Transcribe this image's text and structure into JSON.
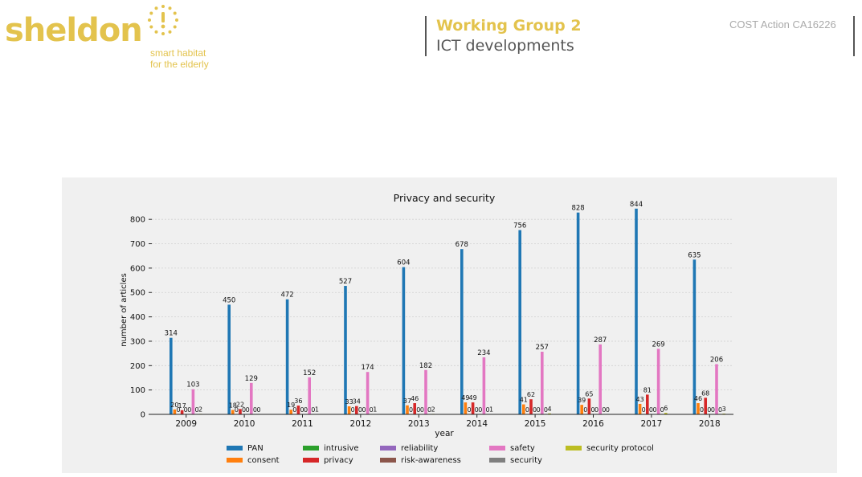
{
  "header": {
    "logo": "sheldon",
    "tagline_1": "smart habitat",
    "tagline_2": "for the elderly",
    "wg_title": "Working Group 2",
    "wg_subtitle": "ICT developments",
    "cost": "COST Action CA16226",
    "brand_color": "#e3c34d"
  },
  "chart_data": {
    "type": "bar",
    "title": "Privacy and security",
    "xlabel": "year",
    "ylabel": "number of articles",
    "ylim": [
      0,
      850
    ],
    "yticks": [
      0,
      100,
      200,
      300,
      400,
      500,
      600,
      700,
      800
    ],
    "grid": true,
    "legend_position": "bottom",
    "categories": [
      "2009",
      "2010",
      "2011",
      "2012",
      "2013",
      "2014",
      "2015",
      "2016",
      "2017",
      "2018"
    ],
    "series": [
      {
        "name": "PAN",
        "color": "#1f77b4",
        "values": [
          314,
          450,
          472,
          527,
          604,
          678,
          756,
          828,
          844,
          635
        ]
      },
      {
        "name": "consent",
        "color": "#ff7f0e",
        "values": [
          20,
          18,
          19,
          33,
          37,
          49,
          41,
          39,
          43,
          46
        ]
      },
      {
        "name": "intrusive",
        "color": "#2ca02c",
        "values": [
          0,
          0,
          0,
          0,
          0,
          0,
          0,
          0,
          0,
          0
        ]
      },
      {
        "name": "privacy",
        "color": "#d62728",
        "values": [
          17,
          22,
          36,
          34,
          46,
          49,
          62,
          65,
          81,
          68
        ]
      },
      {
        "name": "reliability",
        "color": "#9467bd",
        "values": [
          0,
          0,
          0,
          0,
          0,
          0,
          0,
          0,
          0,
          0
        ]
      },
      {
        "name": "risk-awareness",
        "color": "#8c564b",
        "values": [
          0,
          0,
          0,
          0,
          0,
          0,
          0,
          0,
          0,
          0
        ]
      },
      {
        "name": "safety",
        "color": "#e377c2",
        "values": [
          103,
          129,
          152,
          174,
          182,
          234,
          257,
          287,
          269,
          206
        ]
      },
      {
        "name": "security",
        "color": "#7f7f7f",
        "values": [
          0,
          0,
          0,
          0,
          0,
          0,
          0,
          0,
          0,
          0
        ]
      },
      {
        "name": "security protocol",
        "color": "#bcbd22",
        "values": [
          2,
          0,
          1,
          1,
          2,
          1,
          4,
          0,
          6,
          3
        ]
      }
    ]
  }
}
